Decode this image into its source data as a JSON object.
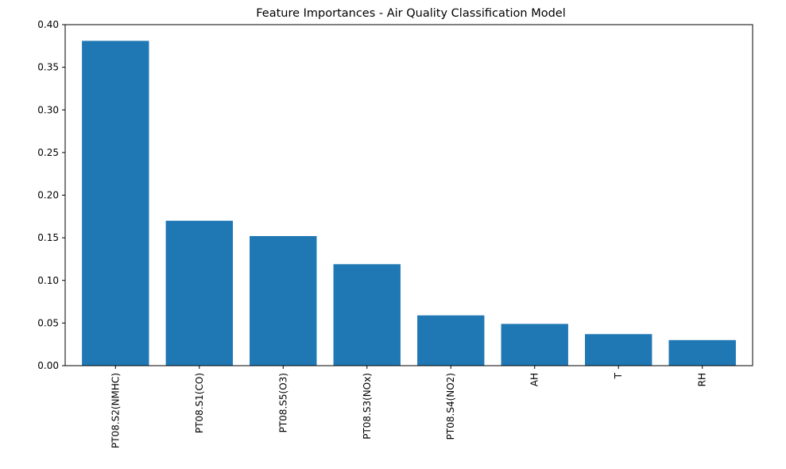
{
  "chart_data": {
    "type": "bar",
    "title": "Feature Importances - Air Quality Classification Model",
    "xlabel": "",
    "ylabel": "",
    "categories": [
      "PT08.S2(NMHC)",
      "PT08.S1(CO)",
      "PT08.S5(O3)",
      "PT08.S3(NOx)",
      "PT08.S4(NO2)",
      "AH",
      "T",
      "RH"
    ],
    "values": [
      0.381,
      0.17,
      0.152,
      0.119,
      0.059,
      0.049,
      0.037,
      0.03
    ],
    "ylim": [
      0,
      0.4
    ],
    "yticks": [
      0.0,
      0.05,
      0.1,
      0.15,
      0.2,
      0.25,
      0.3,
      0.35,
      0.4
    ],
    "ytick_labels": [
      "0.00",
      "0.05",
      "0.10",
      "0.15",
      "0.20",
      "0.25",
      "0.30",
      "0.35",
      "0.40"
    ],
    "bar_color": "#1f77b4",
    "grid": false,
    "legend": "none"
  }
}
